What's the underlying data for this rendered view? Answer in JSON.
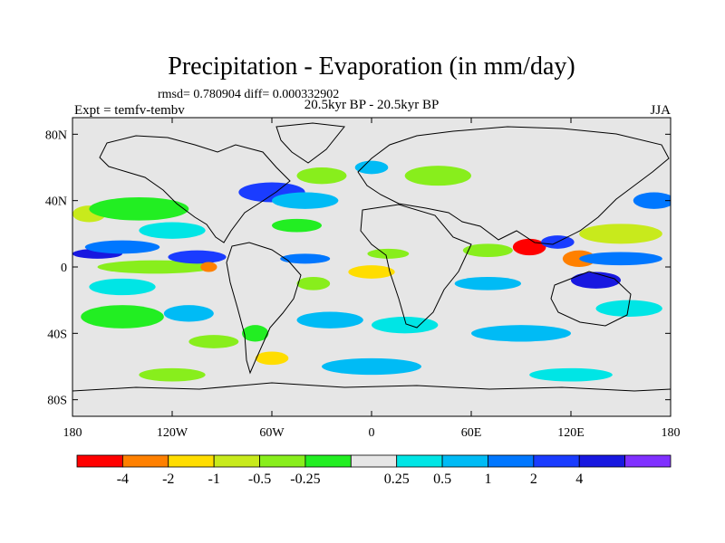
{
  "chart_data": {
    "type": "heatmap",
    "title": "Precipitation - Evaporation (in mm/day)",
    "stats": "rmsd= 0.780904 diff= 0.000332902",
    "subtitle_left": "Expt = temfv-tembv",
    "subtitle_center": "20.5kyr BP - 20.5kyr BP",
    "subtitle_right": "JJA",
    "x_range": [
      -180,
      180
    ],
    "y_range": [
      -90,
      90
    ],
    "x_ticks": [
      {
        "value": -180,
        "label": "180"
      },
      {
        "value": -120,
        "label": "120W"
      },
      {
        "value": -60,
        "label": "60W"
      },
      {
        "value": 0,
        "label": "0"
      },
      {
        "value": 60,
        "label": "60E"
      },
      {
        "value": 120,
        "label": "120E"
      },
      {
        "value": 180,
        "label": "180"
      }
    ],
    "y_ticks": [
      {
        "value": 80,
        "label": "80N"
      },
      {
        "value": 40,
        "label": "40N"
      },
      {
        "value": 0,
        "label": "0"
      },
      {
        "value": -40,
        "label": "40S"
      },
      {
        "value": -80,
        "label": "80S"
      }
    ],
    "colorbar": {
      "colors": [
        "#ff0000",
        "#ff8000",
        "#ffdd00",
        "#c8ea1c",
        "#88ee1c",
        "#22ee22",
        "#e6e6e6",
        "#00e5e5",
        "#00bbf5",
        "#0077ff",
        "#1a3cff",
        "#1818e0",
        "#8030ff"
      ],
      "labels": [
        "-4",
        "-2",
        "-1",
        "-0.5",
        "-0.25",
        "0.25",
        "0.5",
        "1",
        "2",
        "4"
      ],
      "label_boundary_index": [
        1,
        2,
        3,
        4,
        5,
        7,
        8,
        9,
        10,
        11
      ]
    },
    "anomaly_patches": [
      {
        "lon": -165,
        "lat": 8,
        "w": 30,
        "h": 6,
        "level": 11
      },
      {
        "lon": -150,
        "lat": 12,
        "w": 45,
        "h": 8,
        "level": 9
      },
      {
        "lon": -170,
        "lat": 32,
        "w": 20,
        "h": 10,
        "level": 3
      },
      {
        "lon": -140,
        "lat": 35,
        "w": 60,
        "h": 14,
        "level": 5
      },
      {
        "lon": -120,
        "lat": 22,
        "w": 40,
        "h": 10,
        "level": 7
      },
      {
        "lon": -130,
        "lat": 0,
        "w": 70,
        "h": 8,
        "level": 4
      },
      {
        "lon": -105,
        "lat": 6,
        "w": 35,
        "h": 8,
        "level": 10
      },
      {
        "lon": -98,
        "lat": 0,
        "w": 10,
        "h": 6,
        "level": 1
      },
      {
        "lon": -150,
        "lat": -12,
        "w": 40,
        "h": 10,
        "level": 7
      },
      {
        "lon": -150,
        "lat": -30,
        "w": 50,
        "h": 14,
        "level": 5
      },
      {
        "lon": -110,
        "lat": -28,
        "w": 30,
        "h": 10,
        "level": 8
      },
      {
        "lon": -95,
        "lat": -45,
        "w": 30,
        "h": 8,
        "level": 4
      },
      {
        "lon": -60,
        "lat": 45,
        "w": 40,
        "h": 12,
        "level": 10
      },
      {
        "lon": -40,
        "lat": 40,
        "w": 40,
        "h": 10,
        "level": 8
      },
      {
        "lon": -30,
        "lat": 55,
        "w": 30,
        "h": 10,
        "level": 4
      },
      {
        "lon": -45,
        "lat": 25,
        "w": 30,
        "h": 8,
        "level": 5
      },
      {
        "lon": -40,
        "lat": 5,
        "w": 30,
        "h": 6,
        "level": 9
      },
      {
        "lon": -35,
        "lat": -10,
        "w": 20,
        "h": 8,
        "level": 4
      },
      {
        "lon": -25,
        "lat": -32,
        "w": 40,
        "h": 10,
        "level": 8
      },
      {
        "lon": -60,
        "lat": -55,
        "w": 20,
        "h": 8,
        "level": 2
      },
      {
        "lon": -70,
        "lat": -40,
        "w": 16,
        "h": 10,
        "level": 5
      },
      {
        "lon": 0,
        "lat": -3,
        "w": 28,
        "h": 8,
        "level": 2
      },
      {
        "lon": 10,
        "lat": 8,
        "w": 25,
        "h": 6,
        "level": 4
      },
      {
        "lon": 20,
        "lat": -35,
        "w": 40,
        "h": 10,
        "level": 7
      },
      {
        "lon": 40,
        "lat": 55,
        "w": 40,
        "h": 12,
        "level": 4
      },
      {
        "lon": 0,
        "lat": 60,
        "w": 20,
        "h": 8,
        "level": 8
      },
      {
        "lon": 70,
        "lat": -10,
        "w": 40,
        "h": 8,
        "level": 8
      },
      {
        "lon": 70,
        "lat": 10,
        "w": 30,
        "h": 8,
        "level": 4
      },
      {
        "lon": 95,
        "lat": 12,
        "w": 20,
        "h": 10,
        "level": 0
      },
      {
        "lon": 112,
        "lat": 15,
        "w": 20,
        "h": 8,
        "level": 10
      },
      {
        "lon": 125,
        "lat": 5,
        "w": 20,
        "h": 10,
        "level": 1
      },
      {
        "lon": 135,
        "lat": -8,
        "w": 30,
        "h": 10,
        "level": 11
      },
      {
        "lon": 150,
        "lat": 20,
        "w": 50,
        "h": 12,
        "level": 3
      },
      {
        "lon": 150,
        "lat": 5,
        "w": 50,
        "h": 8,
        "level": 9
      },
      {
        "lon": 155,
        "lat": -25,
        "w": 40,
        "h": 10,
        "level": 7
      },
      {
        "lon": 170,
        "lat": 40,
        "w": 25,
        "h": 10,
        "level": 9
      },
      {
        "lon": 90,
        "lat": -40,
        "w": 60,
        "h": 10,
        "level": 8
      },
      {
        "lon": 0,
        "lat": -60,
        "w": 60,
        "h": 10,
        "level": 8
      },
      {
        "lon": -120,
        "lat": -65,
        "w": 40,
        "h": 8,
        "level": 4
      },
      {
        "lon": 120,
        "lat": -65,
        "w": 50,
        "h": 8,
        "level": 7
      }
    ]
  }
}
